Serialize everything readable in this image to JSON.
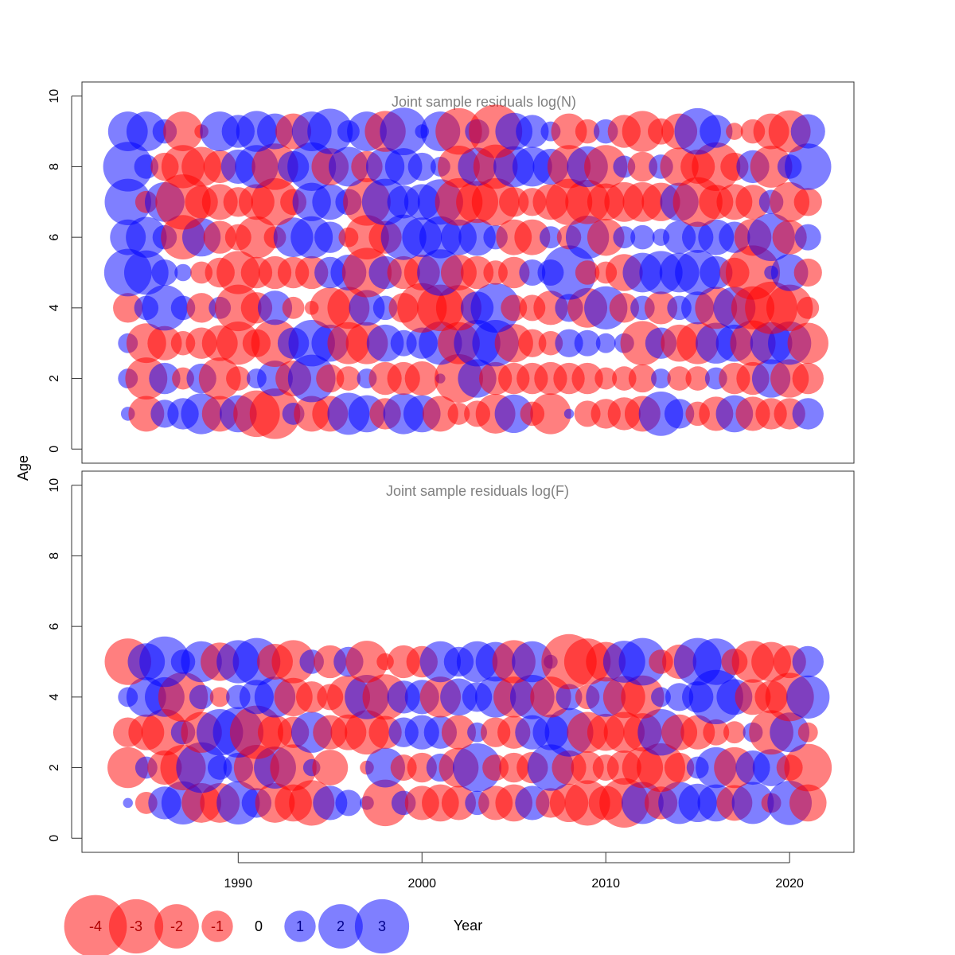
{
  "chart_data": {
    "type": "scatter",
    "xlabel": "Year",
    "ylabel": "Age",
    "xlim": [
      1981.5,
      2023.5
    ],
    "x_ticks": [
      1990,
      2000,
      2010,
      2020
    ],
    "colors": {
      "negative": "#ff0000",
      "positive": "#0000ff",
      "alpha": 0.5
    },
    "legend": {
      "placement": "bottom",
      "values": [
        -4,
        -3,
        -2,
        -1,
        0,
        1,
        2,
        3
      ],
      "labels": [
        "-4",
        "-3",
        "-2",
        "-1",
        "0",
        "1",
        "2",
        "3"
      ]
    },
    "panels": [
      {
        "title": "Joint sample residuals log(N)",
        "ylim": [
          -0.4,
          10.4
        ],
        "y_ticks": [
          0,
          2,
          4,
          6,
          8,
          10
        ],
        "years": [
          1984,
          1985,
          1986,
          1987,
          1988,
          1989,
          1990,
          1991,
          1992,
          1993,
          1994,
          1995,
          1996,
          1997,
          1998,
          1999,
          2000,
          2001,
          2002,
          2003,
          2004,
          2005,
          2006,
          2007,
          2008,
          2009,
          2010,
          2011,
          2012,
          2013,
          2014,
          2015,
          2016,
          2017,
          2018,
          2019,
          2020,
          2021
        ],
        "ages": [
          1,
          2,
          3,
          4,
          5,
          6,
          7,
          8,
          9
        ],
        "residuals": [
          [
            0.2,
            -1.3,
            0.8,
            1.0,
            1.7,
            -1.3,
            1.4,
            -2.2,
            -2.6,
            0.5,
            -1.3,
            -1.3,
            1.8,
            1.4,
            -1.0,
            1.7,
            1.4,
            -1.3,
            -0.5,
            -0.7,
            -1.6,
            1.5,
            -0.6,
            -1.7,
            0.1,
            -0.7,
            -0.9,
            -1.1,
            -1.3,
            2.0,
            0.9,
            -0.6,
            -1.2,
            1.4,
            -1.2,
            -1.0,
            -1.0,
            1.0
          ],
          [
            0.4,
            -1.8,
            1.0,
            -0.5,
            0.9,
            -1.8,
            -0.6,
            0.4,
            1.3,
            -1.3,
            2.3,
            -0.8,
            -0.6,
            0.4,
            -1.1,
            -1.1,
            -1.2,
            0.1,
            -2.4,
            1.5,
            -1.1,
            -1.0,
            -1.0,
            -1.1,
            -1.0,
            -1.0,
            -0.5,
            -0.6,
            -0.8,
            0.4,
            -0.6,
            -0.6,
            0.5,
            -1.0,
            -1.1,
            1.5,
            -1.5,
            -1.0
          ],
          [
            0.4,
            -1.6,
            -1.2,
            -0.6,
            -1.0,
            -1.3,
            -1.9,
            -0.8,
            -2.3,
            1.0,
            2.2,
            1.4,
            -1.8,
            -1.8,
            1.4,
            0.7,
            1.0,
            1.9,
            -1.8,
            2.2,
            2.2,
            -1.5,
            -0.8,
            -0.6,
            0.8,
            0.7,
            0.4,
            0.4,
            -2.0,
            1.0,
            -1.4,
            -1.8,
            1.7,
            1.4,
            -2.1,
            1.8,
            1.9,
            -1.7
          ],
          [
            -0.9,
            0.6,
            2.1,
            0.6,
            -0.9,
            0.5,
            -2.2,
            -1.0,
            1.2,
            -0.5,
            -0.2,
            -1.7,
            -1.8,
            1.3,
            0.6,
            -0.9,
            -2.5,
            -2.2,
            -2.1,
            1.1,
            2.5,
            -0.7,
            -0.7,
            -1.2,
            0.8,
            -1.6,
            1.9,
            -0.9,
            0.6,
            -1.1,
            0.6,
            1.1,
            -1.8,
            1.8,
            -1.9,
            -2.8,
            -2.2,
            -0.5
          ],
          [
            2.3,
            2.0,
            0.7,
            0.3,
            -0.5,
            -0.9,
            -1.9,
            -1.0,
            -1.1,
            -1.0,
            -1.1,
            1.0,
            1.3,
            -2.5,
            1.1,
            -1.1,
            -1.3,
            2.2,
            -1.3,
            -1.1,
            -0.6,
            -1.0,
            0.7,
            0.7,
            3.0,
            -0.6,
            -0.5,
            -1.4,
            1.6,
            1.9,
            1.6,
            2.1,
            1.1,
            -0.9,
            -3.0,
            0.2,
            1.4,
            -0.8
          ],
          [
            1.3,
            1.7,
            0.6,
            -2.0,
            1.5,
            -1.1,
            -0.7,
            -1.8,
            -0.5,
            1.6,
            1.8,
            1.0,
            -0.4,
            -2.0,
            -1.1,
            2.1,
            1.6,
            1.8,
            1.3,
            1.4,
            0.6,
            -1.3,
            -1.3,
            0.5,
            -0.6,
            1.9,
            -1.4,
            0.5,
            0.6,
            0.3,
            1.1,
            1.0,
            1.3,
            1.0,
            -1.4,
            2.3,
            -1.2,
            0.7
          ],
          [
            2.2,
            -0.5,
            1.6,
            -3.1,
            -1.1,
            -1.3,
            -0.9,
            -1.3,
            -2.3,
            -0.7,
            1.5,
            1.3,
            0.7,
            -2.3,
            2.2,
            1.1,
            1.3,
            2.1,
            -2.3,
            -1.8,
            -2.3,
            -0.9,
            -0.8,
            -1.3,
            -2.2,
            -2.0,
            -1.4,
            -1.6,
            -1.6,
            -1.5,
            1.5,
            -2.5,
            -1.2,
            -1.3,
            -1.2,
            0.6,
            -1.6,
            -0.8
          ],
          [
            2.5,
            0.6,
            -0.8,
            -1.9,
            -1.6,
            -1.1,
            1.2,
            1.9,
            -2.2,
            1.0,
            2.4,
            -1.4,
            1.6,
            -1.0,
            1.5,
            1.4,
            0.8,
            0.4,
            -1.8,
            1.5,
            -2.0,
            1.7,
            1.6,
            1.3,
            -1.9,
            1.7,
            -1.9,
            0.5,
            -0.9,
            0.6,
            -1.5,
            -1.2,
            -2.4,
            -0.8,
            1.1,
            -1.8,
            0.6,
            2.2
          ],
          [
            1.6,
            1.6,
            0.6,
            -1.6,
            -0.2,
            1.6,
            1.1,
            1.7,
            1.3,
            -1.3,
            1.6,
            2.1,
            0.5,
            1.6,
            -1.7,
            2.3,
            0.2,
            1.6,
            -2.2,
            0.6,
            -2.9,
            1.4,
            1.1,
            0.4,
            -1.3,
            -0.6,
            0.6,
            -1.1,
            -1.7,
            -0.7,
            -1.3,
            2.2,
            1.1,
            -0.3,
            -0.6,
            -1.3,
            -1.8,
            1.2
          ]
        ]
      },
      {
        "title": "Joint sample residuals log(F)",
        "ylim": [
          -0.4,
          10.4
        ],
        "y_ticks": [
          0,
          2,
          4,
          6,
          8,
          10
        ],
        "years": [
          1984,
          1985,
          1986,
          1987,
          1988,
          1989,
          1990,
          1991,
          1992,
          1993,
          1994,
          1995,
          1996,
          1997,
          1998,
          1999,
          2000,
          2001,
          2002,
          2003,
          2004,
          2005,
          2006,
          2007,
          2008,
          2009,
          2010,
          2011,
          2012,
          2013,
          2014,
          2015,
          2016,
          2017,
          2018,
          2019,
          2020,
          2021
        ],
        "ages": [
          1,
          2,
          3,
          4,
          5
        ],
        "residuals": [
          [
            0.1,
            -0.5,
            1.1,
            1.9,
            -1.6,
            -1.6,
            1.9,
            0.9,
            -1.6,
            -1.4,
            -2.1,
            1.2,
            0.7,
            0.2,
            -2.2,
            0.6,
            -1.2,
            -1.4,
            -1.2,
            0.6,
            -1.2,
            -1.4,
            1.2,
            -0.9,
            -1.5,
            -2.1,
            -1.2,
            -2.5,
            1.8,
            -1.1,
            1.8,
            1.5,
            1.4,
            -1.3,
            1.8,
            -0.4,
            2.0,
            -1.4
          ],
          [
            -1.7,
            0.5,
            -1.2,
            -2.1,
            2.6,
            0.6,
            0.9,
            -2.1,
            1.8,
            -2.2,
            0.3,
            -1.3,
            0,
            -0.2,
            1.6,
            -0.7,
            -0.9,
            0.8,
            -1.6,
            2.4,
            -0.7,
            -0.9,
            -1.0,
            2.2,
            -1.2,
            -1.1,
            -0.7,
            -1.2,
            -1.7,
            -2.4,
            -0.9,
            0.5,
            1.7,
            -1.7,
            1.2,
            1.4,
            -0.7,
            -2.3
          ],
          [
            -0.9,
            -1.3,
            -2.2,
            0.6,
            -1.7,
            2.2,
            2.6,
            -2.9,
            -1.2,
            -1.0,
            1.7,
            -1.2,
            -1.3,
            -2.0,
            -1.1,
            0.9,
            1.2,
            1.1,
            -1.2,
            0.4,
            -0.9,
            -1.1,
            1.2,
            1.3,
            2.4,
            -1.7,
            -1.4,
            -1.7,
            -1.5,
            2.2,
            -1.3,
            -1.2,
            -0.7,
            -0.5,
            0.4,
            -2.0,
            1.6,
            -0.4
          ],
          [
            0.4,
            1.6,
            1.6,
            -2.5,
            0.6,
            -0.4,
            0.6,
            1.2,
            1.7,
            -1.5,
            -1.0,
            -0.7,
            -1.9,
            2.0,
            -2.1,
            1.1,
            1.2,
            -1.7,
            1.4,
            0.9,
            1.7,
            -1.7,
            2.0,
            -1.7,
            0.7,
            -0.6,
            1.6,
            -1.8,
            -1.9,
            0.4,
            0.8,
            1.0,
            3.0,
            1.3,
            -1.3,
            -1.1,
            -2.4,
            1.9
          ],
          [
            -2.2,
            1.4,
            2.6,
            0.6,
            1.7,
            -1.5,
            1.9,
            2.3,
            -1.3,
            -1.9,
            0.6,
            -1.1,
            0.9,
            -1.8,
            -0.3,
            -1.1,
            -1.0,
            1.7,
            0.9,
            1.7,
            1.6,
            -1.9,
            1.7,
            0.2,
            -3.1,
            -2.2,
            -1.6,
            1.8,
            2.3,
            -0.6,
            -1.2,
            2.3,
            2.2,
            -0.7,
            -1.8,
            -1.6,
            -1.1,
            1.0
          ]
        ]
      }
    ]
  }
}
